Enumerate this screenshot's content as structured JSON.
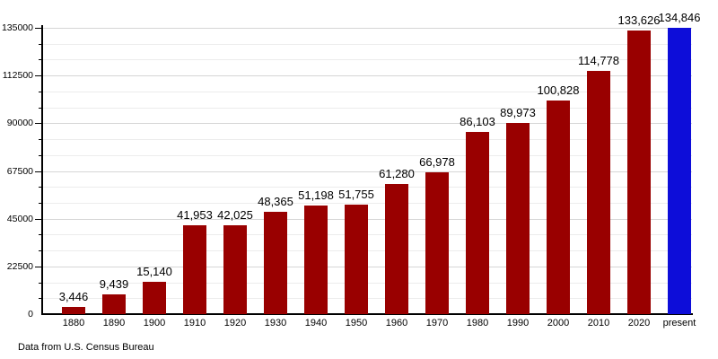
{
  "chart_data": {
    "type": "bar",
    "title": "",
    "xlabel": "",
    "ylabel": "",
    "categories": [
      "1880",
      "1890",
      "1900",
      "1910",
      "1920",
      "1930",
      "1940",
      "1950",
      "1960",
      "1970",
      "1980",
      "1990",
      "2000",
      "2010",
      "2020",
      "present"
    ],
    "values": [
      3446,
      9439,
      15140,
      41953,
      42025,
      48365,
      51198,
      51755,
      61280,
      66978,
      86103,
      89973,
      100828,
      114778,
      133626,
      134846
    ],
    "value_labels": [
      "3,446",
      "9,439",
      "15,140",
      "41,953",
      "42,025",
      "48,365",
      "51,198",
      "51,755",
      "61,280",
      "66,978",
      "86,103",
      "89,973",
      "100,828",
      "114,778",
      "133,626",
      "134,846"
    ],
    "ylim": [
      0,
      135000
    ],
    "y_major_step": 22500,
    "y_minor_step": 7500,
    "y_tick_labels": [
      "0",
      "22500",
      "45000",
      "67500",
      "90000",
      "112500",
      "135000"
    ],
    "grid": true,
    "legend": "none",
    "bar_color": "#990000",
    "highlight_index": 15,
    "highlight_color": "#0d0dd9",
    "axis_color": "#000000"
  },
  "footer": {
    "source": "Data from U.S. Census Bureau"
  }
}
